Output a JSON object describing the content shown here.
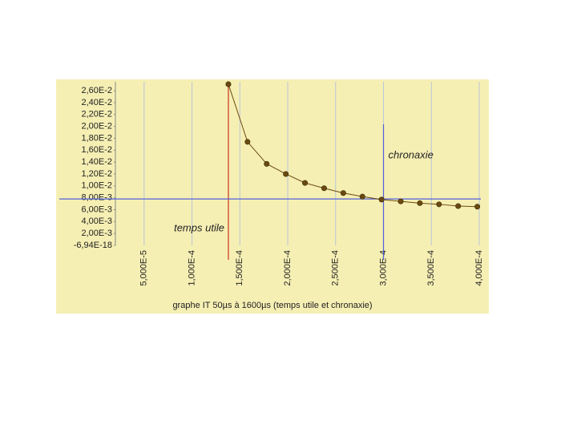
{
  "chart_data": {
    "type": "line",
    "xlabel": "graphe IT 50µs à 1600µs (temps utile et chronaxie)",
    "x": [
      0.000138,
      0.000158,
      0.000178,
      0.000198,
      0.000218,
      0.000238,
      0.000258,
      0.000278,
      0.000298,
      0.000318,
      0.000338,
      0.000358,
      0.000378,
      0.000398
    ],
    "series": [
      {
        "color": "#6b4a10",
        "values": [
          0.0271,
          0.0174,
          0.0137,
          0.012,
          0.0105,
          0.0096,
          0.0088,
          0.0082,
          0.0077,
          0.0074,
          0.0071,
          0.0069,
          0.0066,
          0.0065
        ]
      }
    ],
    "xlim": [
      2e-05,
      0.0004
    ],
    "ylim": [
      0,
      0.0275
    ],
    "xticks": [
      {
        "value": 5e-05,
        "label": "5,000E-5"
      },
      {
        "value": 0.0001,
        "label": "1,000E-4"
      },
      {
        "value": 0.00015,
        "label": "1,500E-4"
      },
      {
        "value": 0.0002,
        "label": "2,000E-4"
      },
      {
        "value": 0.00025,
        "label": "2,500E-4"
      },
      {
        "value": 0.0003,
        "label": "3,000E-4"
      },
      {
        "value": 0.00035,
        "label": "3,500E-4"
      },
      {
        "value": 0.0004,
        "label": "4,000E-4"
      }
    ],
    "yticks": [
      {
        "value": 0.026,
        "label": "2,60E-2"
      },
      {
        "value": 0.024,
        "label": "2,40E-2"
      },
      {
        "value": 0.022,
        "label": "2,20E-2"
      },
      {
        "value": 0.02,
        "label": "2,00E-2"
      },
      {
        "value": 0.018,
        "label": "1,80E-2"
      },
      {
        "value": 0.016,
        "label": "1,60E-2"
      },
      {
        "value": 0.014,
        "label": "1,40E-2"
      },
      {
        "value": 0.012,
        "label": "1,20E-2"
      },
      {
        "value": 0.01,
        "label": "1,00E-2"
      },
      {
        "value": 0.008,
        "label": "8,00E-3"
      },
      {
        "value": 0.006,
        "label": "6,00E-3"
      },
      {
        "value": 0.004,
        "label": "4,00E-3"
      },
      {
        "value": 0.002,
        "label": "2,00E-3"
      },
      {
        "value": -6.94e-18,
        "label": "-6,94E-18"
      }
    ],
    "grid": true,
    "annotations": [
      {
        "text": "temps utile",
        "x": 0.000138,
        "color": "#c8341c"
      },
      {
        "text": "chronaxie",
        "x": 0.0003,
        "y": 0.0078,
        "color": "#5060d8"
      }
    ]
  }
}
